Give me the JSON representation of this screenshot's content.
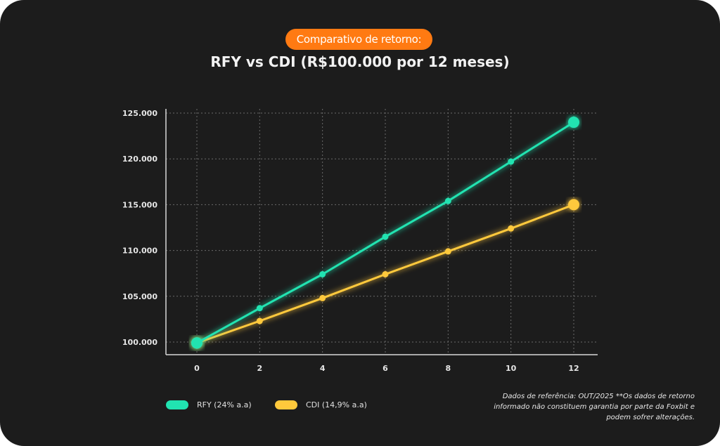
{
  "header": {
    "badge": "Comparativo de retorno:",
    "title": "RFY vs CDI (R$100.000 por 12 meses)"
  },
  "chart_data": {
    "type": "line",
    "x": [
      0,
      2,
      4,
      6,
      8,
      10,
      12
    ],
    "x_tick_labels": [
      "0",
      "2",
      "4",
      "6",
      "8",
      "10",
      "12"
    ],
    "y_tick_values": [
      100000,
      105000,
      110000,
      115000,
      120000,
      125000
    ],
    "y_tick_labels": [
      "100.000",
      "105.000",
      "110.000",
      "115.000",
      "120.000",
      "125.000"
    ],
    "xlim": [
      0,
      12
    ],
    "ylim": [
      100000,
      125000
    ],
    "grid": true,
    "legend_position": "bottom-left",
    "series": [
      {
        "name": "RFY (24% a.a)",
        "color": "#21e3b1",
        "values": [
          99900,
          103700,
          107400,
          111500,
          115400,
          119700,
          124000
        ]
      },
      {
        "name": "CDI (14,9% a.a)",
        "color": "#ffc93c",
        "values": [
          99900,
          102300,
          104800,
          107400,
          109900,
          112400,
          115000
        ]
      }
    ]
  },
  "footnote": "Dados de referência: OUT/2025 **Os dados de retorno informado não constituem garantia por parte da Foxbit e podem sofrer alterações."
}
